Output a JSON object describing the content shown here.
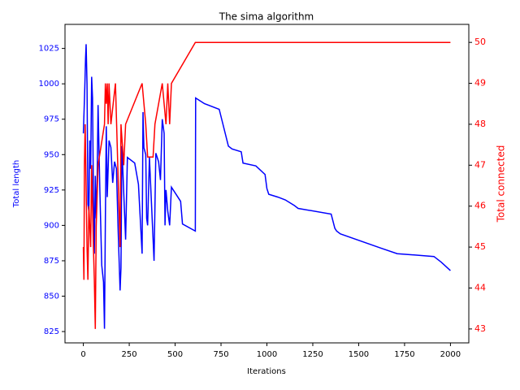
{
  "chart_data": {
    "type": "line",
    "title": "The sima algorithm",
    "x_label": "Iterations",
    "y_label": "Total length",
    "y2_label": "Total connected",
    "xlim": [
      -100,
      2100
    ],
    "xticks": [
      0,
      250,
      500,
      750,
      1000,
      1250,
      1500,
      1750,
      2000
    ],
    "ylim": [
      817,
      1042
    ],
    "yticks": [
      825,
      850,
      875,
      900,
      925,
      950,
      975,
      1000,
      1025
    ],
    "y2lim": [
      42.66,
      50.44
    ],
    "y2ticks": [
      43,
      44,
      45,
      46,
      47,
      48,
      49,
      50
    ],
    "y_color": "#0000ff",
    "y2_color": "#ff0000",
    "series": [
      {
        "name": "Total length",
        "color": "#0000ff",
        "axis": "y",
        "x": [
          0,
          5,
          8,
          12,
          15,
          20,
          25,
          30,
          35,
          40,
          45,
          50,
          55,
          60,
          65,
          70,
          75,
          80,
          90,
          100,
          110,
          115,
          120,
          125,
          130,
          140,
          150,
          160,
          170,
          180,
          190,
          200,
          205,
          210,
          230,
          240,
          280,
          300,
          320,
          325,
          330,
          340,
          345,
          350,
          360,
          385,
          395,
          410,
          420,
          430,
          440,
          445,
          450,
          460,
          470,
          480,
          530,
          540,
          610,
          612,
          660,
          740,
          790,
          810,
          860,
          870,
          940,
          990,
          1000,
          1010,
          1060,
          1100,
          1150,
          1170,
          1350,
          1370,
          1380,
          1400,
          1620,
          1710,
          1910,
          1930,
          1950,
          2000
        ],
        "values": [
          965,
          985,
          998,
          1018,
          1028,
          1000,
          915,
          910,
          960,
          940,
          1005,
          990,
          920,
          880,
          935,
          905,
          930,
          985,
          925,
          872,
          860,
          827,
          905,
          970,
          920,
          960,
          955,
          930,
          945,
          940,
          895,
          854,
          870,
          956,
          890,
          948,
          944,
          929,
          880,
          980,
          955,
          950,
          905,
          900,
          948,
          875,
          951,
          945,
          932,
          975,
          965,
          900,
          925,
          910,
          900,
          927,
          917,
          901,
          896,
          990,
          986,
          982,
          956,
          954,
          952,
          944,
          942,
          936,
          926,
          922,
          920,
          918,
          914,
          912,
          908,
          898,
          896,
          894,
          884,
          880,
          878,
          876,
          874,
          868
        ]
      },
      {
        "name": "Total connected",
        "color": "#ff0000",
        "axis": "y2",
        "x": [
          0,
          3,
          6,
          10,
          20,
          25,
          30,
          40,
          45,
          55,
          60,
          65,
          70,
          80,
          115,
          120,
          125,
          130,
          135,
          140,
          150,
          175,
          200,
          205,
          220,
          230,
          320,
          340,
          350,
          380,
          390,
          430,
          450,
          460,
          470,
          480,
          610,
          2000
        ],
        "values": [
          45,
          44.2,
          47,
          48,
          45,
          44.2,
          46,
          45,
          47,
          45,
          44.2,
          43,
          45.5,
          47,
          48,
          49,
          48.5,
          49,
          48,
          49,
          48,
          49,
          45,
          48,
          47,
          48,
          49,
          48,
          47.2,
          47.2,
          48,
          49,
          48,
          49,
          48,
          49,
          50,
          50
        ]
      }
    ]
  }
}
